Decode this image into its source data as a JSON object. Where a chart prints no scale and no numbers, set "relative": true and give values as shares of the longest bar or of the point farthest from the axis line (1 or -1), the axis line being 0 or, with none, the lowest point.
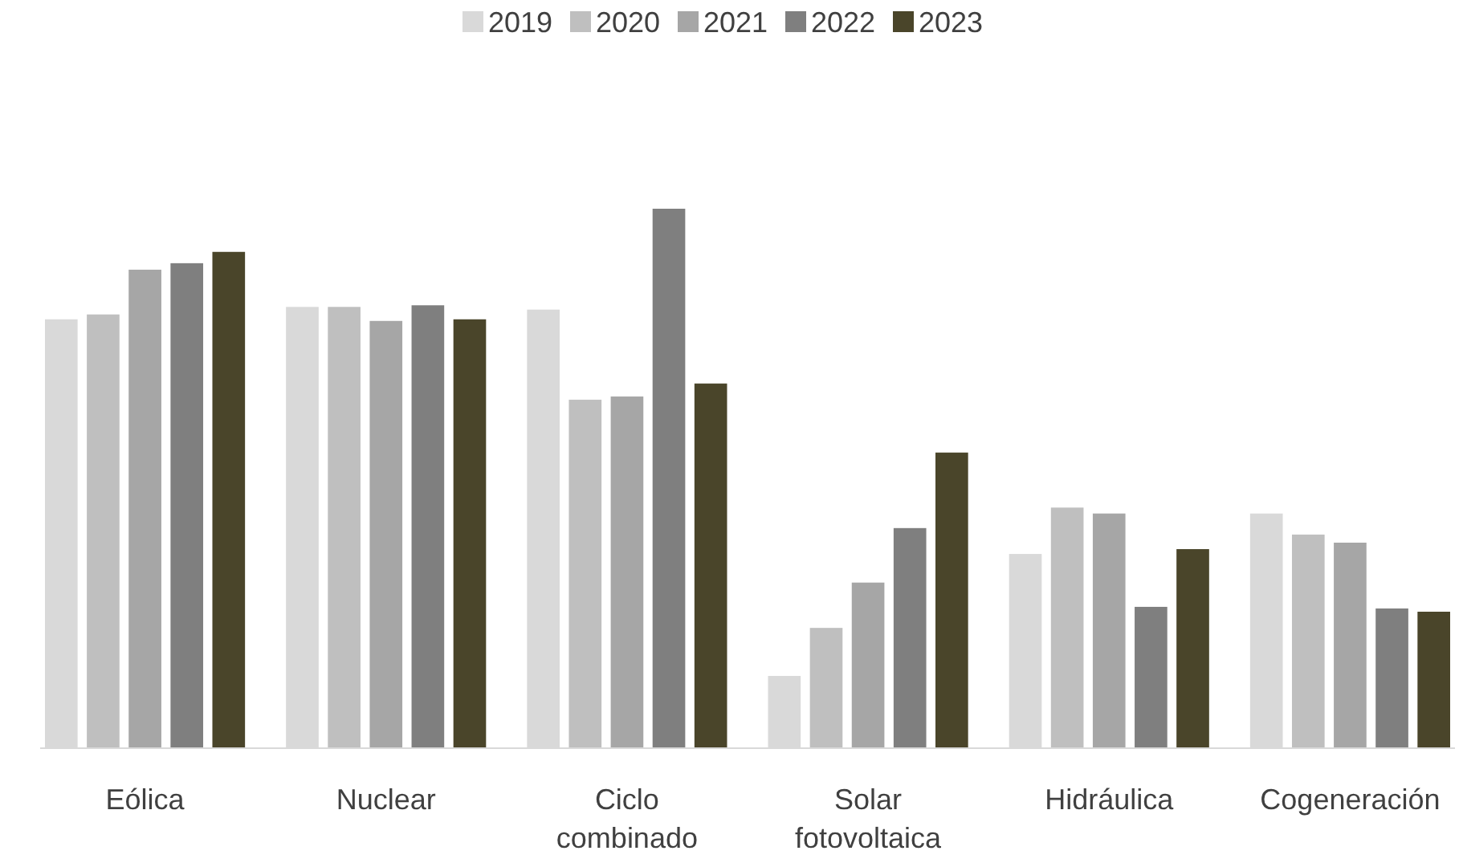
{
  "chart_data": {
    "type": "bar",
    "relative": true,
    "legend": "top",
    "categories": [
      "Eólica",
      "Nuclear",
      "Ciclo combinado",
      "Solar fotovoltaica",
      "Hidráulica",
      "Cogeneración"
    ],
    "series": [
      {
        "name": "2019",
        "color": "#d9d9d9",
        "values": [
          0.795,
          0.818,
          0.813,
          0.134,
          0.36,
          0.435
        ]
      },
      {
        "name": "2020",
        "color": "#bfbfbf",
        "values": [
          0.804,
          0.818,
          0.646,
          0.223,
          0.446,
          0.396
        ]
      },
      {
        "name": "2021",
        "color": "#a6a6a6",
        "values": [
          0.887,
          0.792,
          0.652,
          0.307,
          0.435,
          0.381
        ]
      },
      {
        "name": "2022",
        "color": "#7f7f7f",
        "values": [
          0.899,
          0.821,
          1,
          0.408,
          0.262,
          0.259
        ]
      },
      {
        "name": "2023",
        "color": "#4a452a",
        "values": [
          0.92,
          0.795,
          0.676,
          0.548,
          0.369,
          0.253
        ]
      }
    ]
  }
}
